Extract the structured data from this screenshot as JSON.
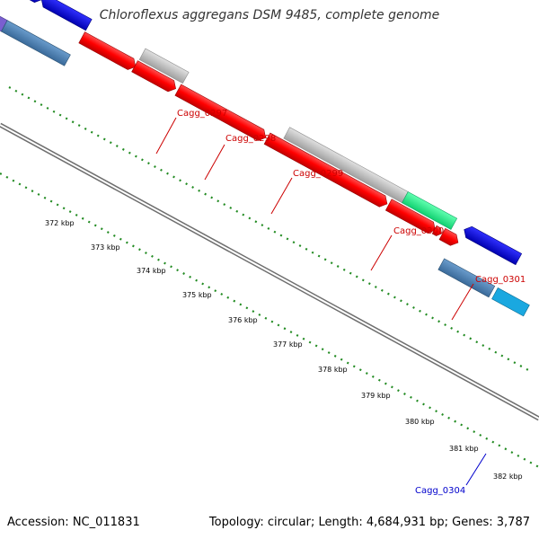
{
  "title": "Chloroflexus aggregans DSM 9485, complete genome",
  "footer": {
    "accession": "Accession: NC_011831",
    "topology": "Topology: circular; Length: 4,684,931 bp; Genes: 3,787"
  },
  "kbp_labels": [
    "372 kbp",
    "373 kbp",
    "374 kbp",
    "375 kbp",
    "376 kbp",
    "377 kbp",
    "378 kbp",
    "379 kbp",
    "380 kbp",
    "381 kbp",
    "382 kbp"
  ],
  "gene_labels": [
    {
      "id": "g297",
      "text": "Cagg_0297"
    },
    {
      "id": "g298",
      "text": "Cagg_0298"
    },
    {
      "id": "g299",
      "text": "Cagg_0299"
    },
    {
      "id": "g300",
      "text": "Cagg_0300"
    },
    {
      "id": "g301",
      "text": "Cagg_0301"
    },
    {
      "id": "g304",
      "text": "Cagg_0304"
    }
  ],
  "colors": {
    "red": "#ff0000",
    "gray": "#c0c0c0",
    "green": "#1cf08c",
    "blue": "#0000ee",
    "steelblue": "#4a7fb5",
    "cyan": "#1aa8e0",
    "purple": "#7a5fd0",
    "backbone": "#808080",
    "tick": "#228b22",
    "label_red": "#cc0000",
    "label_blue": "#0000cc"
  }
}
